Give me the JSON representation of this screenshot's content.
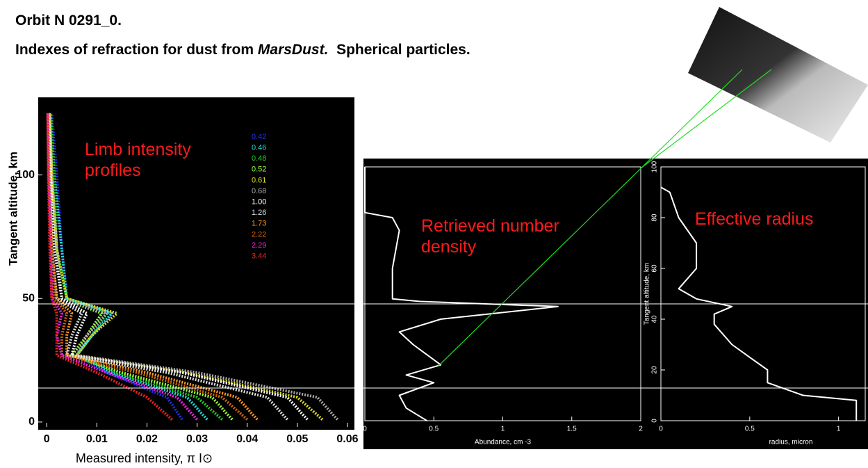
{
  "header": {
    "title": "Orbit N 0291_0.",
    "subtitle": [
      "Indexes of refraction for dust from ",
      "MarsDust.",
      "  Spherical particles."
    ]
  },
  "chart_data": [
    {
      "type": "line",
      "annotation": "Limb intensity profiles",
      "ylabel": "Tangent altitude, km",
      "xlabel": "Measured intensity, π I⊙",
      "xlim": [
        -0.0017,
        0.06
      ],
      "xticks": [
        0,
        0.01,
        0.02,
        0.03,
        0.04,
        0.05,
        0.06
      ],
      "ylim": [
        -2,
        130
      ],
      "yticks": [
        0,
        50,
        100
      ],
      "y": [
        1,
        10,
        20,
        27,
        35,
        44,
        50,
        70,
        100,
        125
      ],
      "series": [
        {
          "name": "0.42",
          "color": "#2233dd",
          "x": [
            0.027,
            0.024,
            0.012,
            0.006,
            0.009,
            0.013,
            0.004,
            0.003,
            0.002,
            0.001
          ]
        },
        {
          "name": "0.46",
          "color": "#22dddd",
          "x": [
            0.032,
            0.028,
            0.013,
            0.006,
            0.009,
            0.013,
            0.004,
            0.003,
            0.0015,
            0.0008
          ]
        },
        {
          "name": "0.48",
          "color": "#22cc22",
          "x": [
            0.035,
            0.03,
            0.014,
            0.006,
            0.009,
            0.012,
            0.004,
            0.002,
            0.0015,
            0.0008
          ]
        },
        {
          "name": "0.52",
          "color": "#99ff44",
          "x": [
            0.037,
            0.033,
            0.015,
            0.005,
            0.008,
            0.011,
            0.003,
            0.002,
            0.001,
            0.0006
          ]
        },
        {
          "name": "0.61",
          "color": "#dddd22",
          "x": [
            0.055,
            0.05,
            0.028,
            0.006,
            0.009,
            0.014,
            0.004,
            0.002,
            0.001,
            0.0006
          ]
        },
        {
          "name": "0.68",
          "color": "#aaaaaa",
          "x": [
            0.058,
            0.054,
            0.03,
            0.006,
            0.008,
            0.012,
            0.003,
            0.002,
            0.001,
            0.0005
          ]
        },
        {
          "name": "1.00",
          "color": "#ffffff",
          "x": [
            0.052,
            0.048,
            0.027,
            0.005,
            0.006,
            0.008,
            0.003,
            0.0015,
            0.0008,
            0.0004
          ]
        },
        {
          "name": "1.26",
          "color": "#dddddd",
          "x": [
            0.048,
            0.044,
            0.024,
            0.004,
            0.005,
            0.007,
            0.002,
            0.001,
            0.0006,
            0.0003
          ]
        },
        {
          "name": "1.73",
          "color": "#ff9922",
          "x": [
            0.042,
            0.038,
            0.02,
            0.004,
            0.004,
            0.005,
            0.002,
            0.001,
            0.0005,
            0.0003
          ]
        },
        {
          "name": "2.22",
          "color": "#cc6611",
          "x": [
            0.04,
            0.035,
            0.018,
            0.003,
            0.003,
            0.004,
            0.0015,
            0.001,
            0.0004,
            0.0002
          ]
        },
        {
          "name": "2.29",
          "color": "#ee22ee",
          "x": [
            0.03,
            0.026,
            0.012,
            0.003,
            0.002,
            0.003,
            0.001,
            0.0008,
            0.0004,
            0.0002
          ]
        },
        {
          "name": "3.44",
          "color": "#ee2222",
          "x": [
            0.025,
            0.02,
            0.01,
            0.002,
            0.002,
            0.002,
            0.001,
            0.0006,
            0.0003,
            0.0002
          ]
        }
      ]
    },
    {
      "type": "line",
      "annotation": "Retrieved number density",
      "xlabel": "Abundance, cm -3",
      "xlim": [
        0,
        2
      ],
      "xticks": [
        0,
        0.5,
        1,
        1.5,
        2
      ],
      "ylim": [
        0,
        100
      ],
      "y": [
        0,
        5,
        10,
        15,
        18,
        22,
        26,
        30,
        35,
        40,
        45,
        47,
        48,
        60,
        75,
        80,
        82,
        100
      ],
      "series": [
        {
          "color": "#ffffff",
          "x": [
            0.45,
            0.3,
            0.25,
            0.5,
            0.3,
            0.55,
            0.45,
            0.35,
            0.25,
            0.55,
            1.4,
            0.4,
            0.2,
            0.2,
            0.25,
            0.2,
            0,
            0
          ]
        }
      ]
    },
    {
      "type": "line",
      "annotation": "Effective radius",
      "xlabel": "radius, micron",
      "ylabel": "Tangent altitude, km",
      "xlim": [
        0,
        1.15
      ],
      "xticks": [
        0,
        0.5,
        1
      ],
      "ylim": [
        0,
        100
      ],
      "yticks": [
        0,
        20,
        40,
        60,
        80,
        100
      ],
      "y": [
        0,
        8,
        10,
        15,
        20,
        25,
        30,
        38,
        42,
        45,
        48,
        52,
        60,
        70,
        80,
        90,
        92
      ],
      "series": [
        {
          "color": "#ffffff",
          "x": [
            1.1,
            1.1,
            0.8,
            0.6,
            0.6,
            0.5,
            0.4,
            0.3,
            0.3,
            0.4,
            0.2,
            0.1,
            0.2,
            0.2,
            0.1,
            0.05,
            0
          ]
        }
      ]
    }
  ]
}
